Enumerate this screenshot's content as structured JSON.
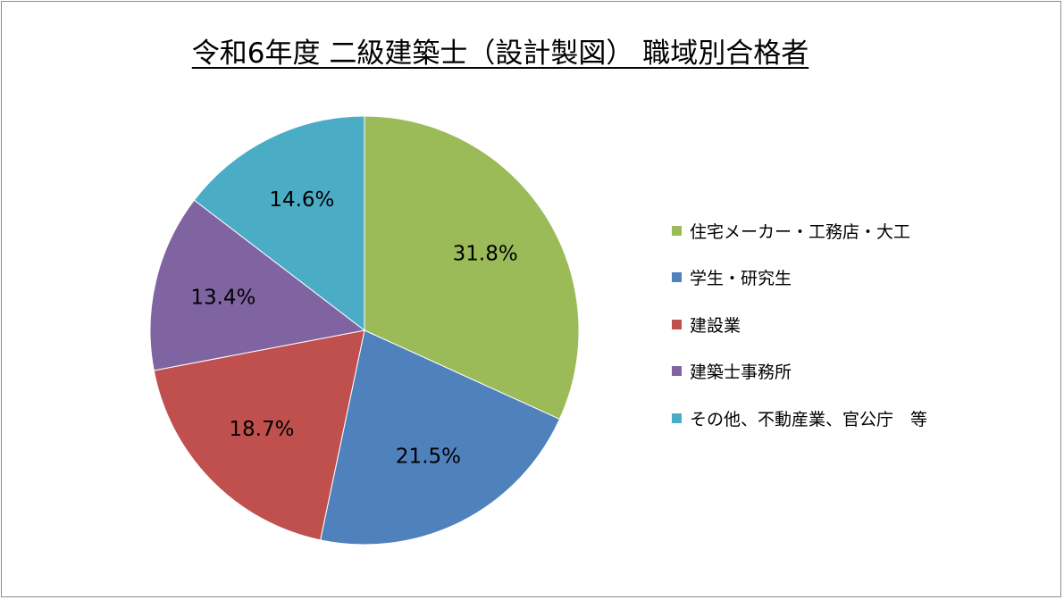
{
  "chart_data": {
    "type": "pie",
    "title": "令和6年度 二級建築士（設計製図） 職域別合格者",
    "categories": [
      "住宅メーカー・工務店・大工",
      "学生・研究生",
      "建設業",
      "建築士事務所",
      "その他、不動産業、官公庁　等"
    ],
    "values": [
      31.8,
      21.5,
      18.7,
      13.4,
      14.6
    ],
    "data_labels": [
      "31.8%",
      "21.5%",
      "18.7%",
      "13.4%",
      "14.6%"
    ],
    "colors": [
      "#9bbb59",
      "#4f81bd",
      "#c0504d",
      "#8064a2",
      "#4bacc6"
    ],
    "start_angle": "12 o'clock",
    "direction": "clockwise",
    "legend_position": "right"
  }
}
